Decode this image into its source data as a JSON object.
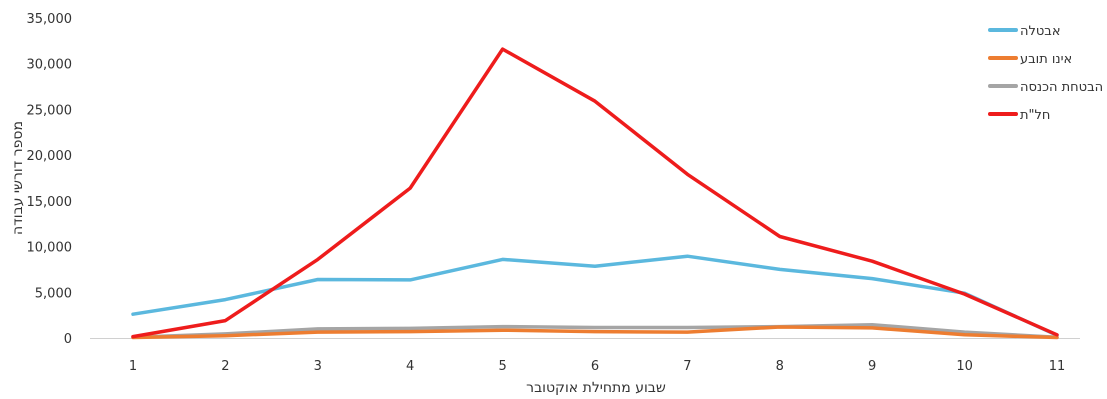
{
  "chart_data": {
    "type": "line",
    "xlabel": "שבוע מתחילת אוקטובר",
    "ylabel": "מספר דורשי עבודה",
    "x": [
      1,
      2,
      3,
      4,
      5,
      6,
      7,
      8,
      9,
      10,
      11
    ],
    "ylim": [
      0,
      35000
    ],
    "y_ticks": [
      "0",
      "5,000",
      "10,000",
      "15,000",
      "20,000",
      "25,000",
      "30,000",
      "35,000"
    ],
    "grid": false,
    "legend_position": "top-right",
    "series": [
      {
        "name": "אבטלה",
        "color": "#5bb8de",
        "values": [
          2600,
          4200,
          6400,
          6350,
          8600,
          7850,
          8950,
          7500,
          6500,
          4900,
          300
        ]
      },
      {
        "name": "אינו תובע",
        "color": "#ed7d31",
        "values": [
          50,
          250,
          650,
          700,
          850,
          700,
          650,
          1200,
          1100,
          350,
          50
        ]
      },
      {
        "name": "הבטחת הכנסה",
        "color": "#a5a5a5",
        "values": [
          80,
          450,
          1000,
          1050,
          1250,
          1150,
          1150,
          1250,
          1450,
          650,
          80
        ]
      },
      {
        "name": "חל\"ת",
        "color": "#ee1c1c",
        "values": [
          150,
          1900,
          8600,
          16400,
          31600,
          25900,
          17900,
          11100,
          8400,
          4800,
          350
        ]
      }
    ]
  }
}
